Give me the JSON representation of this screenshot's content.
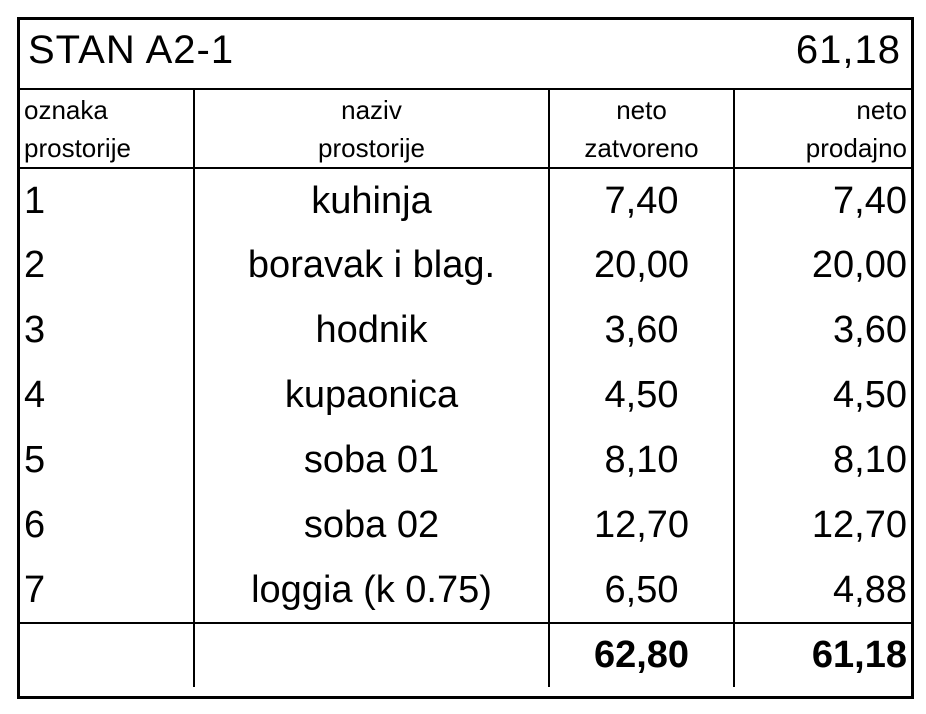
{
  "title": "STAN A2-1",
  "total_area": "61,18",
  "header": {
    "col1": [
      "oznaka",
      "prostorije"
    ],
    "col2": [
      "naziv",
      "prostorije"
    ],
    "col3": [
      "neto",
      "zatvoreno"
    ],
    "col4": [
      "neto",
      "prodajno"
    ]
  },
  "rows": [
    {
      "id": "1",
      "name": "kuhinja",
      "closed": "7,40",
      "sale": "7,40"
    },
    {
      "id": "2",
      "name": "boravak i blag.",
      "closed": "20,00",
      "sale": "20,00"
    },
    {
      "id": "3",
      "name": "hodnik",
      "closed": "3,60",
      "sale": "3,60"
    },
    {
      "id": "4",
      "name": "kupaonica",
      "closed": "4,50",
      "sale": "4,50"
    },
    {
      "id": "5",
      "name": "soba 01",
      "closed": "8,10",
      "sale": "8,10"
    },
    {
      "id": "6",
      "name": "soba 02",
      "closed": "12,70",
      "sale": "12,70"
    },
    {
      "id": "7",
      "name": "loggia (k 0.75)",
      "closed": "6,50",
      "sale": "4,88"
    }
  ],
  "totals": {
    "closed": "62,80",
    "sale": "61,18"
  }
}
